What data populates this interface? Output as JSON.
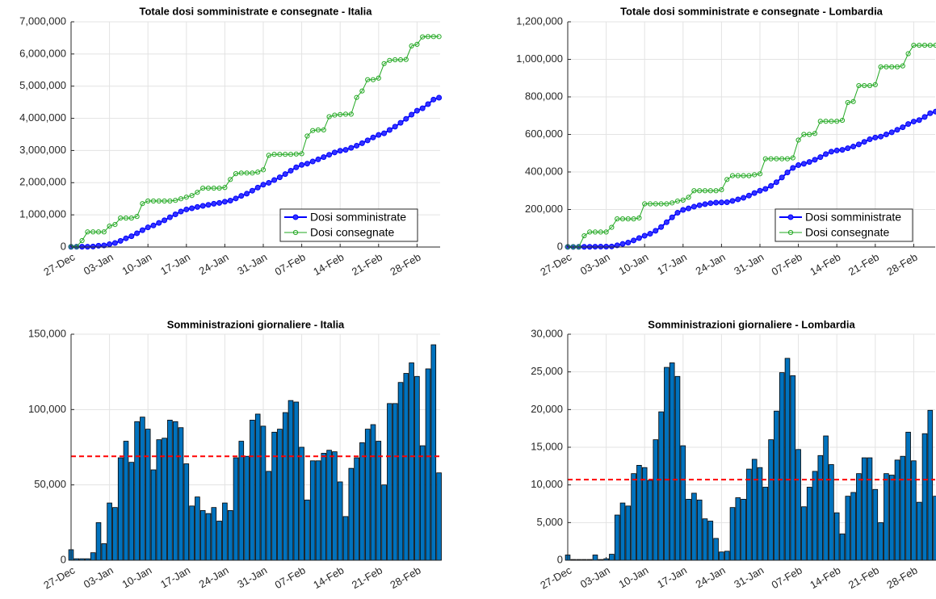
{
  "chart_data": [
    {
      "type": "line",
      "title": "Totale dosi somministrate e consegnate - Italia",
      "categories": [
        "27-Dec",
        null,
        null,
        null,
        null,
        null,
        null,
        "03-Jan",
        null,
        null,
        null,
        null,
        null,
        null,
        "10-Jan",
        null,
        null,
        null,
        null,
        null,
        null,
        "17-Jan",
        null,
        null,
        null,
        null,
        null,
        null,
        "24-Jan",
        null,
        null,
        null,
        null,
        null,
        null,
        "31-Jan",
        null,
        null,
        null,
        null,
        null,
        null,
        "07-Feb",
        null,
        null,
        null,
        null,
        null,
        null,
        "14-Feb",
        null,
        null,
        null,
        null,
        null,
        null,
        "21-Feb",
        null,
        null,
        null,
        null,
        null,
        null,
        "28-Feb",
        null,
        null,
        null,
        null
      ],
      "series": [
        {
          "name": "Dosi somministrate",
          "color": "#0000ff",
          "values": [
            7000,
            8000,
            9000,
            10000,
            15000,
            40000,
            51000,
            89000,
            124000,
            192000,
            271000,
            336000,
            428000,
            523000,
            610000,
            670000,
            750000,
            831000,
            924000,
            1016000,
            1104000,
            1168000,
            1204000,
            1246000,
            1279000,
            1310000,
            1345000,
            1371000,
            1409000,
            1442000,
            1510000,
            1589000,
            1658000,
            1751000,
            1848000,
            1937000,
            1996000,
            2081000,
            2168000,
            2266000,
            2372000,
            2477000,
            2552000,
            2592000,
            2658000,
            2724000,
            2795000,
            2868000,
            2940000,
            2992000,
            3021000,
            3082000,
            3150000,
            3228000,
            3315000,
            3405000,
            3484000,
            3534000,
            3638000,
            3742000,
            3860000,
            3984000,
            4115000,
            4237000,
            4313000,
            4440000,
            4583000,
            4641000
          ]
        },
        {
          "name": "Dosi consegnate",
          "color": "#22a822",
          "values": [
            10000,
            10000,
            200000,
            470000,
            470000,
            470000,
            470000,
            650000,
            700000,
            900000,
            900000,
            900000,
            950000,
            1350000,
            1430000,
            1430000,
            1430000,
            1430000,
            1430000,
            1450000,
            1500000,
            1550000,
            1600000,
            1700000,
            1830000,
            1830000,
            1830000,
            1830000,
            1850000,
            2100000,
            2280000,
            2300000,
            2300000,
            2300000,
            2330000,
            2400000,
            2850000,
            2880000,
            2880000,
            2880000,
            2880000,
            2890000,
            2900000,
            3450000,
            3620000,
            3640000,
            3640000,
            4050000,
            4100000,
            4120000,
            4130000,
            4130000,
            4650000,
            4850000,
            5200000,
            5200000,
            5250000,
            5700000,
            5800000,
            5820000,
            5820000,
            5830000,
            6250000,
            6300000,
            6530000,
            6540000,
            6540000,
            6540000
          ]
        }
      ],
      "ylim": [
        0,
        7000000
      ],
      "yticks": [
        0,
        {
          "value": 1000000,
          "label": "1,000,000"
        },
        {
          "value": 2000000,
          "label": "2,000,000"
        },
        {
          "value": 3000000,
          "label": "3,000,000"
        },
        {
          "value": 4000000,
          "label": "4,000,000"
        },
        {
          "value": 5000000,
          "label": "5,000,000"
        },
        {
          "value": 6000000,
          "label": "6,000,000"
        },
        {
          "value": 7000000,
          "label": "7,000,000"
        }
      ],
      "grid": true,
      "legend": "lower right"
    },
    {
      "type": "line",
      "title": "Totale dosi somministrate e consegnate - Lombardia",
      "categories": [
        "27-Dec",
        null,
        null,
        null,
        null,
        null,
        null,
        "03-Jan",
        null,
        null,
        null,
        null,
        null,
        null,
        "10-Jan",
        null,
        null,
        null,
        null,
        null,
        null,
        "17-Jan",
        null,
        null,
        null,
        null,
        null,
        null,
        "24-Jan",
        null,
        null,
        null,
        null,
        null,
        null,
        "31-Jan",
        null,
        null,
        null,
        null,
        null,
        null,
        "07-Feb",
        null,
        null,
        null,
        null,
        null,
        null,
        "14-Feb",
        null,
        null,
        null,
        null,
        null,
        null,
        "21-Feb",
        null,
        null,
        null,
        null,
        null,
        null,
        "28-Feb",
        null,
        null,
        null,
        null
      ],
      "series": [
        {
          "name": "Dosi somministrate",
          "color": "#0000ff",
          "values": [
            700,
            800,
            900,
            1000,
            1100,
            1800,
            1900,
            2100,
            2900,
            8900,
            16500,
            23700,
            35200,
            47800,
            60100,
            70700,
            86700,
            106400,
            132000,
            158200,
            182600,
            197800,
            205900,
            214800,
            222800,
            228300,
            233500,
            236400,
            237500,
            238700,
            245700,
            254000,
            262100,
            274200,
            287600,
            299900,
            309600,
            325600,
            345400,
            370300,
            397100,
            421600,
            436300,
            443400,
            453100,
            464900,
            478800,
            495300,
            508000,
            514300,
            517800,
            526300,
            535300,
            546800,
            560400,
            574000,
            583400,
            588400,
            599900,
            611200,
            624500,
            638300,
            655300,
            668500,
            676200,
            693000,
            712900,
            721400
          ]
        },
        {
          "name": "Dosi consegnate",
          "color": "#22a822",
          "values": [
            1000,
            1000,
            1000,
            60000,
            80000,
            80000,
            80000,
            80000,
            105000,
            150000,
            150000,
            150000,
            150000,
            155000,
            230000,
            230000,
            230000,
            230000,
            230000,
            235000,
            245000,
            250000,
            265000,
            300000,
            300000,
            300000,
            300000,
            300000,
            305000,
            360000,
            380000,
            380000,
            380000,
            380000,
            385000,
            390000,
            470000,
            470000,
            470000,
            470000,
            470000,
            475000,
            570000,
            600000,
            600000,
            605000,
            670000,
            670000,
            670000,
            670000,
            675000,
            770000,
            775000,
            860000,
            860000,
            860000,
            865000,
            960000,
            960000,
            960000,
            960000,
            965000,
            1030000,
            1075000,
            1075000,
            1075000,
            1075000,
            1075000
          ]
        }
      ],
      "ylim": [
        0,
        1200000
      ],
      "yticks": [
        0,
        {
          "value": 200000,
          "label": "200,000"
        },
        {
          "value": 400000,
          "label": "400,000"
        },
        {
          "value": 600000,
          "label": "600,000"
        },
        {
          "value": 800000,
          "label": "800,000"
        },
        {
          "value": 1000000,
          "label": "1,000,000"
        },
        {
          "value": 1200000,
          "label": "1,200,000"
        }
      ],
      "grid": true,
      "legend": "lower right"
    },
    {
      "type": "bar",
      "title": "Somministrazioni giornaliere - Italia",
      "categories": [
        "27-Dec",
        null,
        null,
        null,
        null,
        null,
        null,
        "03-Jan",
        null,
        null,
        null,
        null,
        null,
        null,
        "10-Jan",
        null,
        null,
        null,
        null,
        null,
        null,
        "17-Jan",
        null,
        null,
        null,
        null,
        null,
        null,
        "24-Jan",
        null,
        null,
        null,
        null,
        null,
        null,
        "31-Jan",
        null,
        null,
        null,
        null,
        null,
        null,
        "07-Feb",
        null,
        null,
        null,
        null,
        null,
        null,
        "14-Feb",
        null,
        null,
        null,
        null,
        null,
        null,
        "21-Feb",
        null,
        null,
        null,
        null,
        null,
        null,
        "28-Feb",
        null,
        null,
        null,
        null
      ],
      "values": [
        7000,
        1000,
        1000,
        1000,
        5000,
        25000,
        11000,
        38000,
        35000,
        68000,
        79000,
        65000,
        92000,
        95000,
        87000,
        60000,
        80000,
        81000,
        93000,
        92000,
        88000,
        64000,
        36000,
        42000,
        33000,
        31000,
        35000,
        26000,
        38000,
        33000,
        68000,
        79000,
        69000,
        93000,
        97000,
        89000,
        59000,
        85000,
        87000,
        98000,
        106000,
        105000,
        75000,
        40000,
        66000,
        66000,
        71000,
        73000,
        72000,
        52000,
        29000,
        61000,
        68000,
        78000,
        87000,
        90000,
        79000,
        50000,
        104000,
        104000,
        118000,
        124000,
        131000,
        122000,
        76000,
        127000,
        143000,
        58000
      ],
      "color": "#0072bd",
      "reference_line": {
        "value": 69000,
        "color": "#ff0000"
      },
      "ylim": [
        0,
        150000
      ],
      "yticks": [
        0,
        {
          "value": 50000,
          "label": "50,000"
        },
        {
          "value": 100000,
          "label": "100,000"
        },
        {
          "value": 150000,
          "label": "150,000"
        }
      ],
      "grid": true
    },
    {
      "type": "bar",
      "title": "Somministrazioni giornaliere - Lombardia",
      "categories": [
        "27-Dec",
        null,
        null,
        null,
        null,
        null,
        null,
        "03-Jan",
        null,
        null,
        null,
        null,
        null,
        null,
        "10-Jan",
        null,
        null,
        null,
        null,
        null,
        null,
        "17-Jan",
        null,
        null,
        null,
        null,
        null,
        null,
        "24-Jan",
        null,
        null,
        null,
        null,
        null,
        null,
        "31-Jan",
        null,
        null,
        null,
        null,
        null,
        null,
        "07-Feb",
        null,
        null,
        null,
        null,
        null,
        null,
        "14-Feb",
        null,
        null,
        null,
        null,
        null,
        null,
        "21-Feb",
        null,
        null,
        null,
        null,
        null,
        null,
        "28-Feb",
        null,
        null,
        null,
        null
      ],
      "values": [
        700,
        100,
        100,
        100,
        100,
        700,
        100,
        200,
        800,
        6000,
        7600,
        7200,
        11500,
        12600,
        12300,
        10600,
        16000,
        19700,
        25600,
        26200,
        24400,
        15200,
        8100,
        8900,
        8000,
        5500,
        5200,
        2900,
        1100,
        1200,
        7000,
        8300,
        8100,
        12100,
        13400,
        12300,
        9700,
        16000,
        19800,
        24900,
        26800,
        24500,
        14700,
        7100,
        9700,
        11800,
        13900,
        16500,
        12700,
        6300,
        3500,
        8500,
        9000,
        11500,
        13600,
        13600,
        9400,
        5000,
        11500,
        11300,
        13300,
        13800,
        17000,
        13200,
        7700,
        16800,
        19900,
        8500
      ],
      "color": "#0072bd",
      "reference_line": {
        "value": 10700,
        "color": "#ff0000"
      },
      "ylim": [
        0,
        30000
      ],
      "yticks": [
        0,
        {
          "value": 5000,
          "label": "5,000"
        },
        {
          "value": 10000,
          "label": "10,000"
        },
        {
          "value": 15000,
          "label": "15,000"
        },
        {
          "value": 20000,
          "label": "20,000"
        },
        {
          "value": 25000,
          "label": "25,000"
        },
        {
          "value": 30000,
          "label": "30,000"
        }
      ],
      "grid": true
    }
  ]
}
